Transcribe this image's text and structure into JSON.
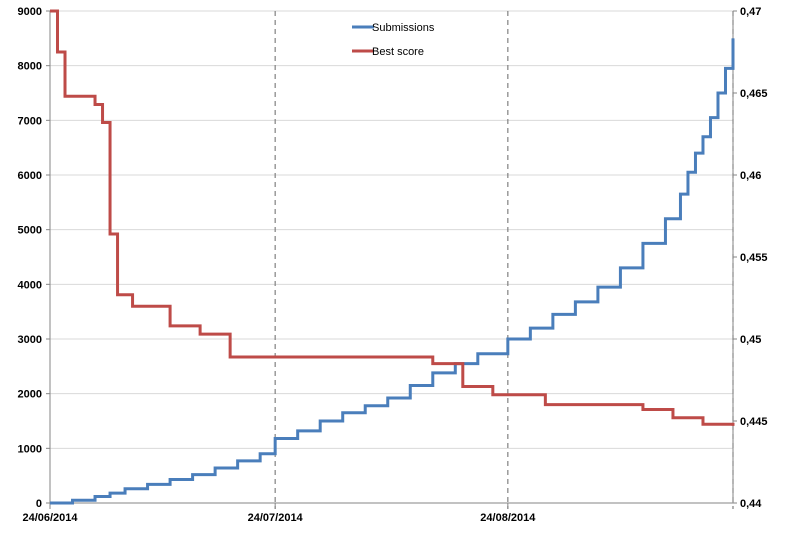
{
  "chart_data": {
    "type": "line",
    "colors": {
      "submissions": "#4a7ebb",
      "best_score": "#be4b48",
      "grid": "#d9d9d9",
      "axis": "#868686"
    },
    "legend_position": "top-center",
    "grid": true,
    "x_axis": {
      "type": "date",
      "range": [
        "2014-06-24",
        "2014-09-23"
      ],
      "tick_labels": [
        "24/06/2014",
        "24/07/2014",
        "24/08/2014"
      ],
      "tick_dates": [
        "2014-06-24",
        "2014-07-24",
        "2014-08-24"
      ],
      "vertical_markers": [
        "2014-07-24",
        "2014-08-24",
        "2014-09-23"
      ]
    },
    "y_left": {
      "label": "",
      "range": [
        0,
        9000
      ],
      "ticks": [
        "0",
        "1000",
        "2000",
        "3000",
        "4000",
        "5000",
        "6000",
        "7000",
        "8000",
        "9000"
      ],
      "tick_values": [
        0,
        1000,
        2000,
        3000,
        4000,
        5000,
        6000,
        7000,
        8000,
        9000
      ]
    },
    "y_right": {
      "label": "",
      "range": [
        0.44,
        0.47
      ],
      "ticks": [
        "0,44",
        "0,445",
        "0,45",
        "0,455",
        "0,46",
        "0,465",
        "0,47"
      ],
      "tick_values": [
        0.44,
        0.445,
        0.45,
        0.455,
        0.46,
        0.465,
        0.47
      ]
    },
    "series": [
      {
        "name": "Submissions",
        "axis": "left",
        "style": "step",
        "points": [
          [
            "2014-06-24",
            0
          ],
          [
            "2014-06-27",
            50
          ],
          [
            "2014-06-30",
            120
          ],
          [
            "2014-07-02",
            180
          ],
          [
            "2014-07-04",
            260
          ],
          [
            "2014-07-07",
            340
          ],
          [
            "2014-07-10",
            430
          ],
          [
            "2014-07-13",
            520
          ],
          [
            "2014-07-16",
            640
          ],
          [
            "2014-07-19",
            770
          ],
          [
            "2014-07-22",
            900
          ],
          [
            "2014-07-24",
            1180
          ],
          [
            "2014-07-27",
            1320
          ],
          [
            "2014-07-30",
            1500
          ],
          [
            "2014-08-02",
            1650
          ],
          [
            "2014-08-05",
            1780
          ],
          [
            "2014-08-08",
            1920
          ],
          [
            "2014-08-11",
            2150
          ],
          [
            "2014-08-14",
            2380
          ],
          [
            "2014-08-17",
            2550
          ],
          [
            "2014-08-20",
            2730
          ],
          [
            "2014-08-24",
            3000
          ],
          [
            "2014-08-27",
            3200
          ],
          [
            "2014-08-30",
            3450
          ],
          [
            "2014-09-02",
            3680
          ],
          [
            "2014-09-05",
            3950
          ],
          [
            "2014-09-08",
            4300
          ],
          [
            "2014-09-11",
            4750
          ],
          [
            "2014-09-14",
            5200
          ],
          [
            "2014-09-16",
            5650
          ],
          [
            "2014-09-17",
            6050
          ],
          [
            "2014-09-18",
            6400
          ],
          [
            "2014-09-19",
            6700
          ],
          [
            "2014-09-20",
            7050
          ],
          [
            "2014-09-21",
            7500
          ],
          [
            "2014-09-22",
            7950
          ],
          [
            "2014-09-23",
            8500
          ]
        ]
      },
      {
        "name": "Best score",
        "axis": "right",
        "style": "step",
        "points": [
          [
            "2014-06-24",
            0.47
          ],
          [
            "2014-06-25",
            0.4675
          ],
          [
            "2014-06-26",
            0.4648
          ],
          [
            "2014-06-30",
            0.4643
          ],
          [
            "2014-07-01",
            0.4632
          ],
          [
            "2014-07-02",
            0.4564
          ],
          [
            "2014-07-03",
            0.4527
          ],
          [
            "2014-07-05",
            0.452
          ],
          [
            "2014-07-10",
            0.4508
          ],
          [
            "2014-07-14",
            0.4503
          ],
          [
            "2014-07-18",
            0.4489
          ],
          [
            "2014-08-14",
            0.4485
          ],
          [
            "2014-08-18",
            0.4471
          ],
          [
            "2014-08-22",
            0.4466
          ],
          [
            "2014-08-29",
            0.446
          ],
          [
            "2014-09-11",
            0.4457
          ],
          [
            "2014-09-15",
            0.4452
          ],
          [
            "2014-09-19",
            0.4448
          ],
          [
            "2014-09-23",
            0.4447
          ]
        ]
      }
    ]
  }
}
